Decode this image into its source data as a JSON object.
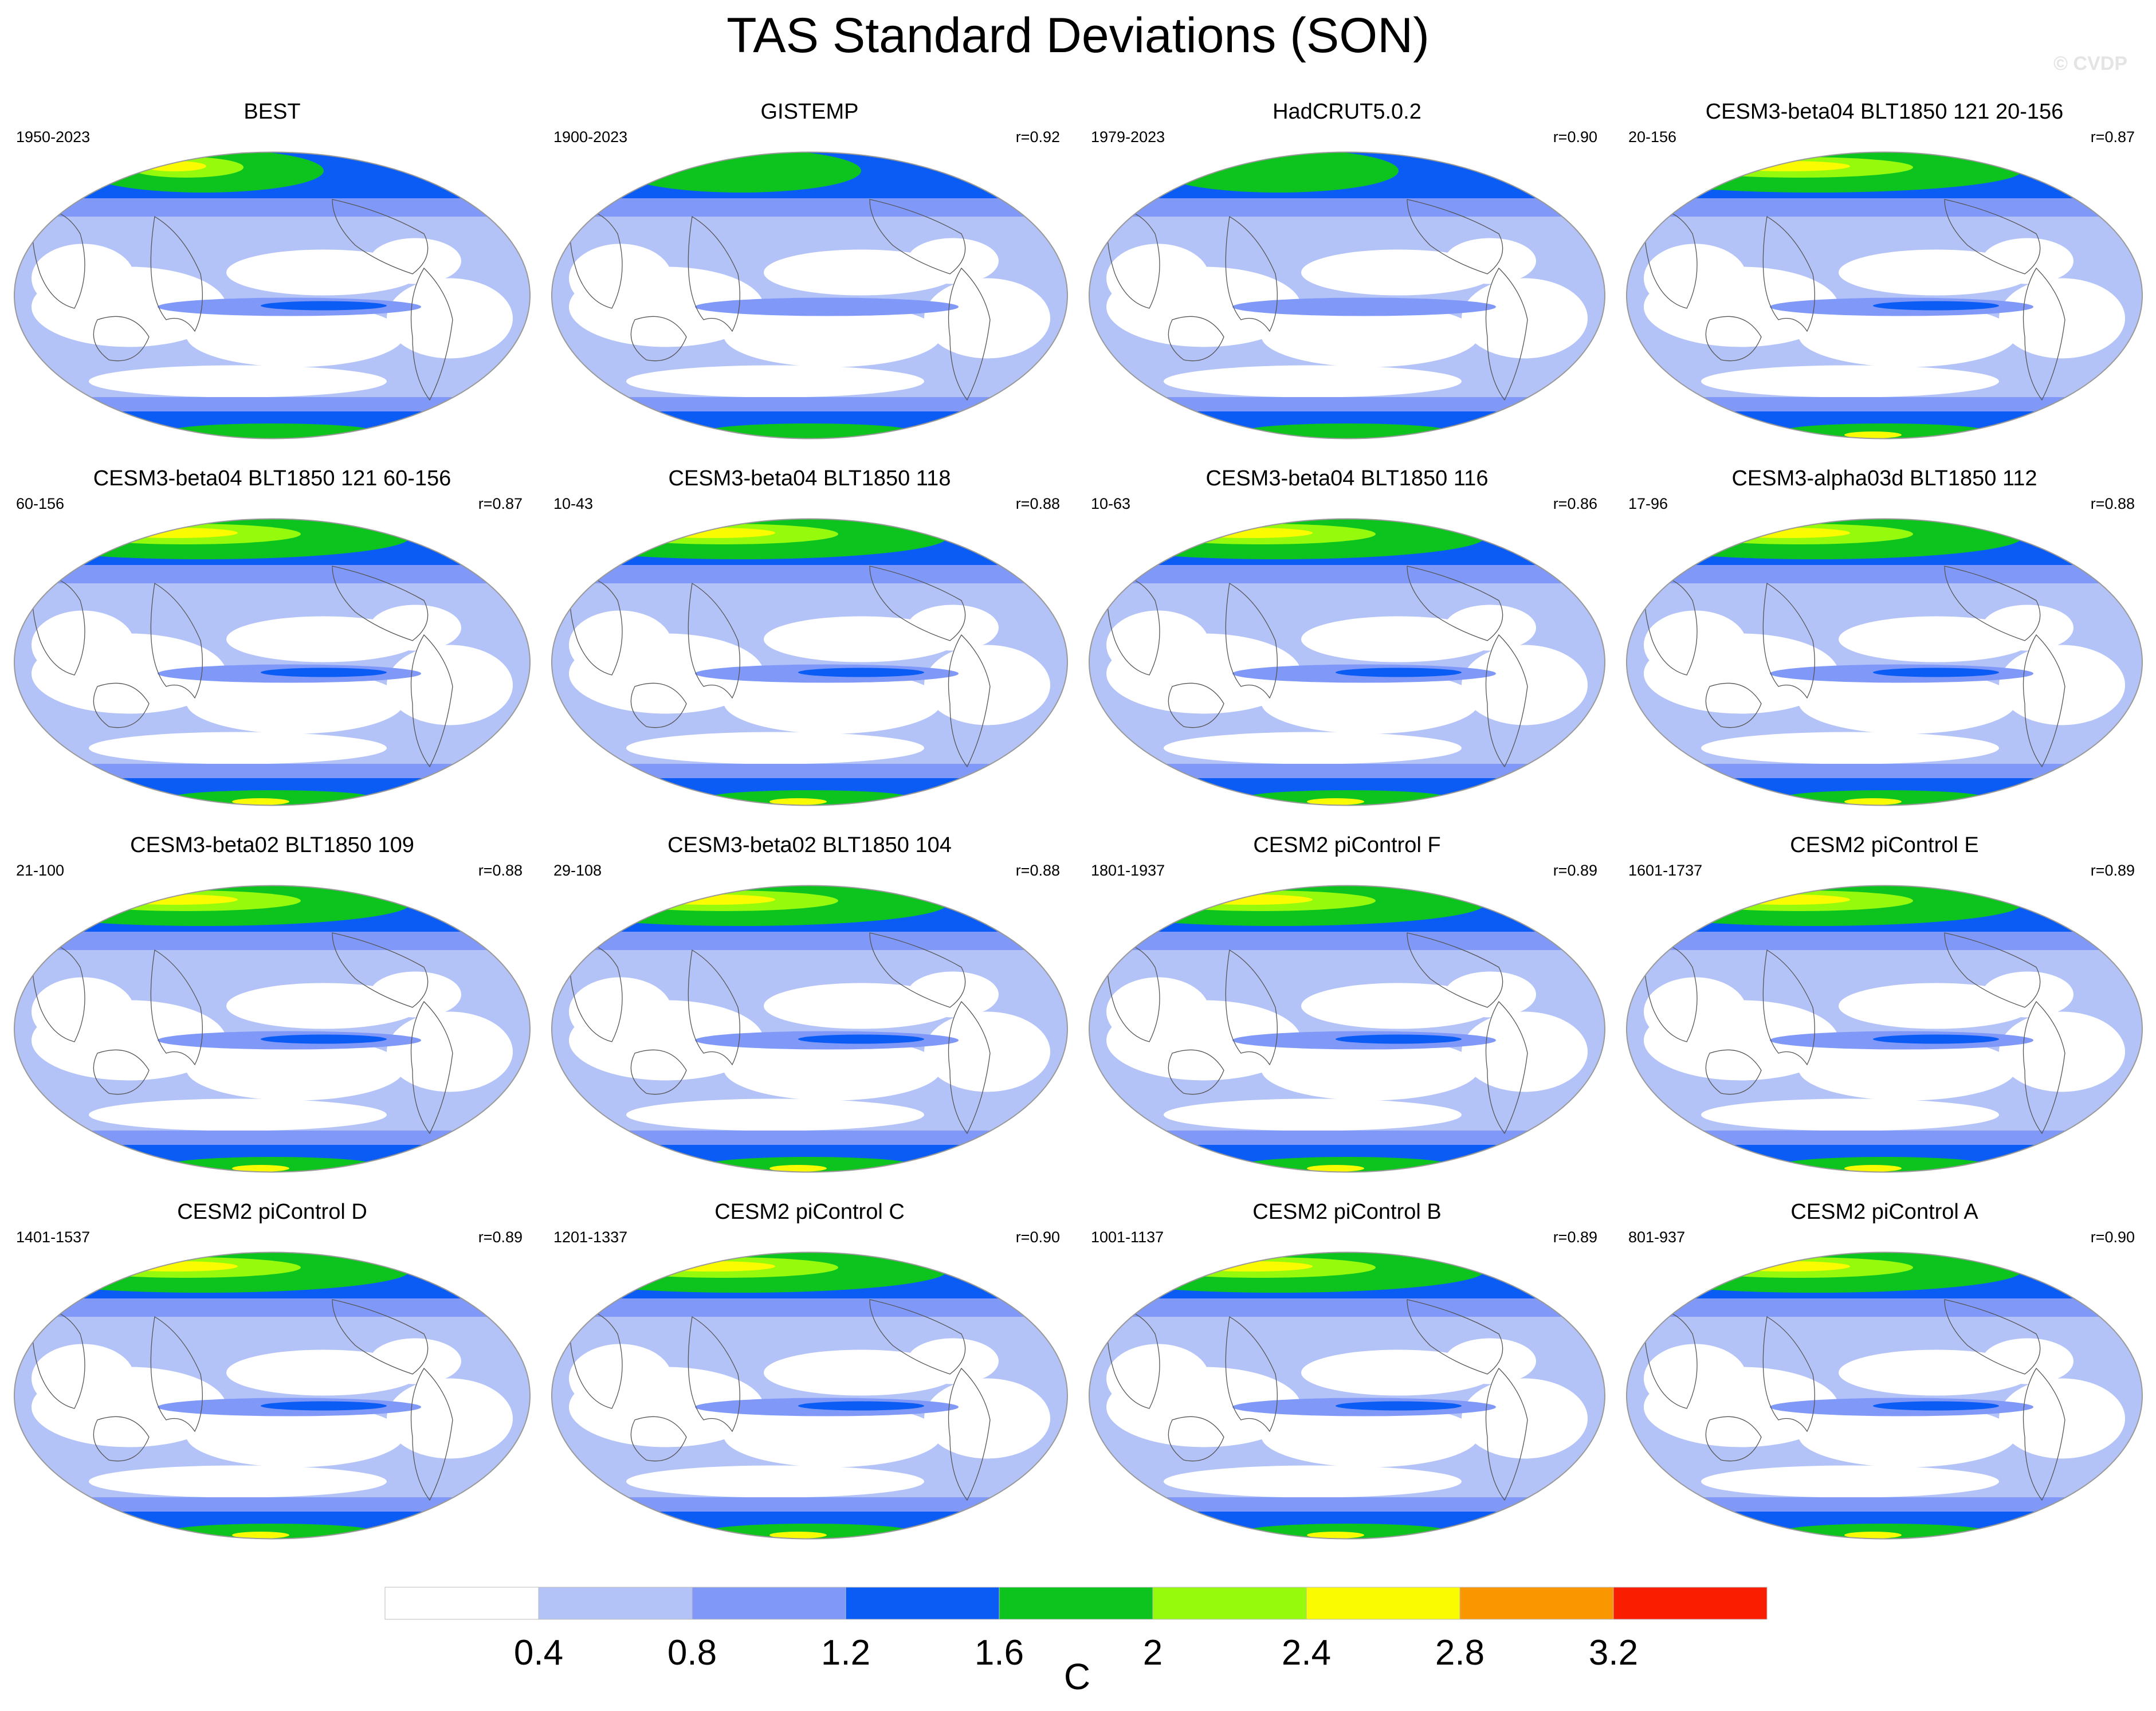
{
  "title": "TAS Standard Deviations (SON)",
  "copyright": "© CVDP",
  "panels": [
    {
      "title": "BEST",
      "years": "1950-2023",
      "corr": ""
    },
    {
      "title": "GISTEMP",
      "years": "1900-2023",
      "corr": "r=0.92"
    },
    {
      "title": "HadCRUT5.0.2",
      "years": "1979-2023",
      "corr": "r=0.90"
    },
    {
      "title": "CESM3-beta04 BLT1850 121 20-156",
      "years": "20-156",
      "corr": "r=0.87"
    },
    {
      "title": "CESM3-beta04 BLT1850 121 60-156",
      "years": "60-156",
      "corr": "r=0.87"
    },
    {
      "title": "CESM3-beta04 BLT1850 118",
      "years": "10-43",
      "corr": "r=0.88"
    },
    {
      "title": "CESM3-beta04 BLT1850 116",
      "years": "10-63",
      "corr": "r=0.86"
    },
    {
      "title": "CESM3-alpha03d BLT1850 112",
      "years": "17-96",
      "corr": "r=0.88"
    },
    {
      "title": "CESM3-beta02 BLT1850 109",
      "years": "21-100",
      "corr": "r=0.88"
    },
    {
      "title": "CESM3-beta02 BLT1850 104",
      "years": "29-108",
      "corr": "r=0.88"
    },
    {
      "title": "CESM2 piControl F",
      "years": "1801-1937",
      "corr": "r=0.89"
    },
    {
      "title": "CESM2 piControl E",
      "years": "1601-1737",
      "corr": "r=0.89"
    },
    {
      "title": "CESM2 piControl D",
      "years": "1401-1537",
      "corr": "r=0.89"
    },
    {
      "title": "CESM2 piControl C",
      "years": "1201-1337",
      "corr": "r=0.90"
    },
    {
      "title": "CESM2 piControl B",
      "years": "1001-1137",
      "corr": "r=0.89"
    },
    {
      "title": "CESM2 piControl A",
      "years": "801-937",
      "corr": "r=0.90"
    }
  ],
  "colorbar": {
    "unit": "C",
    "levels": [
      "0.4",
      "0.8",
      "1.2",
      "1.6",
      "2",
      "2.4",
      "2.8",
      "3.2"
    ],
    "colors": [
      "#ffffff",
      "#b4c3f7",
      "#8098f8",
      "#0a5cf5",
      "#0dc41e",
      "#96fa0d",
      "#fafa00",
      "#fa9600",
      "#fa1e00"
    ]
  }
}
